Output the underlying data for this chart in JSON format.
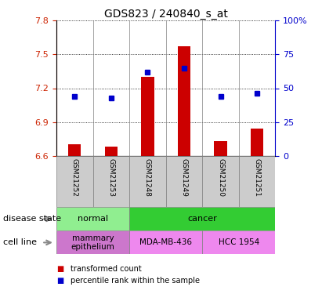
{
  "title": "GDS823 / 240840_s_at",
  "samples": [
    "GSM21252",
    "GSM21253",
    "GSM21248",
    "GSM21249",
    "GSM21250",
    "GSM21251"
  ],
  "transformed_count": [
    6.7,
    6.68,
    7.3,
    7.57,
    6.73,
    6.84
  ],
  "percentile_rank": [
    44,
    43,
    62,
    65,
    44,
    46
  ],
  "ylim_left": [
    6.6,
    7.8
  ],
  "ylim_right": [
    0,
    100
  ],
  "yticks_left": [
    6.6,
    6.9,
    7.2,
    7.5,
    7.8
  ],
  "yticks_right": [
    0,
    25,
    50,
    75,
    100
  ],
  "bar_color": "#CC0000",
  "dot_color": "#0000CC",
  "disease_state_groups": [
    {
      "label": "normal",
      "samples": [
        0,
        1
      ],
      "color": "#90EE90"
    },
    {
      "label": "cancer",
      "samples": [
        2,
        3,
        4,
        5
      ],
      "color": "#33CC33"
    }
  ],
  "cell_line_groups": [
    {
      "label": "mammary\nepithelium",
      "samples": [
        0,
        1
      ],
      "color": "#CC77CC"
    },
    {
      "label": "MDA-MB-436",
      "samples": [
        2,
        3
      ],
      "color": "#EE88EE"
    },
    {
      "label": "HCC 1954",
      "samples": [
        4,
        5
      ],
      "color": "#EE88EE"
    }
  ],
  "legend_items": [
    {
      "color": "#CC0000",
      "label": "transformed count"
    },
    {
      "color": "#0000CC",
      "label": "percentile rank within the sample"
    }
  ],
  "row_label_disease": "disease state",
  "row_label_cell": "cell line",
  "tick_label_color_left": "#CC2200",
  "tick_label_color_right": "#0000CC",
  "bar_width": 0.35,
  "base_value": 6.6
}
